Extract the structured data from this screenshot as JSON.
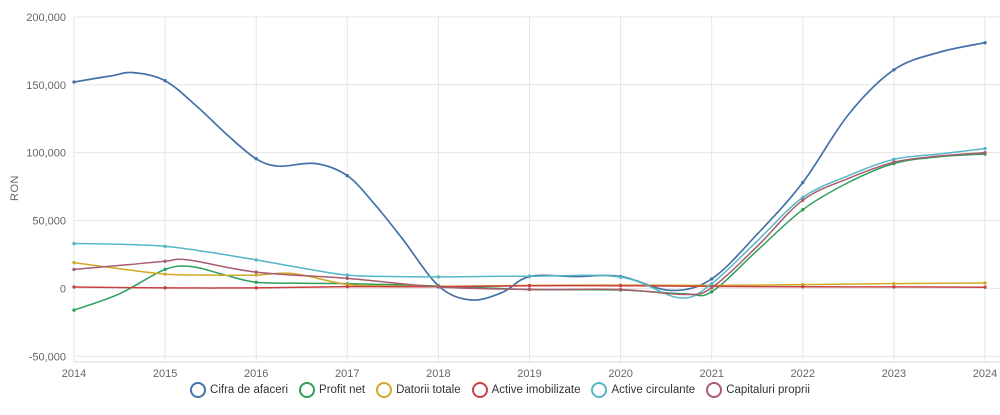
{
  "chart_data": {
    "type": "line",
    "title": "",
    "ylabel": "RON",
    "xlabel": "",
    "grid": true,
    "legend_position": "bottom",
    "xlim": [
      2014,
      2024
    ],
    "ylim": [
      -50000,
      200000
    ],
    "x_ticks": [
      {
        "value": 2014,
        "label": "2014"
      },
      {
        "value": 2015,
        "label": "2015"
      },
      {
        "value": 2016,
        "label": "2016"
      },
      {
        "value": 2017,
        "label": "2017"
      },
      {
        "value": 2018,
        "label": "2018"
      },
      {
        "value": 2019,
        "label": "2019"
      },
      {
        "value": 2020,
        "label": "2020"
      },
      {
        "value": 2021,
        "label": "2021"
      },
      {
        "value": 2022,
        "label": "2022"
      },
      {
        "value": 2023,
        "label": "2023"
      },
      {
        "value": 2024,
        "label": "2024"
      }
    ],
    "y_ticks": [
      {
        "value": 200000,
        "label": "200,000"
      },
      {
        "value": 150000,
        "label": "150,000"
      },
      {
        "value": 100000,
        "label": "100,000"
      },
      {
        "value": 50000,
        "label": "50,000"
      },
      {
        "value": 0,
        "label": "0"
      },
      {
        "value": -50000,
        "label": "-50,000"
      }
    ],
    "series": [
      {
        "name": "Cifra de afaceri",
        "color": "#4472a8",
        "points": [
          [
            2014,
            152000
          ],
          [
            2014.4,
            156500
          ],
          [
            2014.65,
            159000
          ],
          [
            2015,
            153000
          ],
          [
            2015.35,
            134000
          ],
          [
            2015.7,
            112000
          ],
          [
            2016,
            95500
          ],
          [
            2016.25,
            90000
          ],
          [
            2016.65,
            92000
          ],
          [
            2017,
            83000
          ],
          [
            2017.3,
            62000
          ],
          [
            2017.6,
            37000
          ],
          [
            2018,
            2000
          ],
          [
            2018.35,
            -8500
          ],
          [
            2018.7,
            -3000
          ],
          [
            2019,
            8800
          ],
          [
            2019.5,
            8800
          ],
          [
            2020,
            8800
          ],
          [
            2020.55,
            -1500
          ],
          [
            2021,
            7000
          ],
          [
            2021.5,
            40000
          ],
          [
            2022,
            78000
          ],
          [
            2022.5,
            128000
          ],
          [
            2023,
            161000
          ],
          [
            2023.5,
            174000
          ],
          [
            2024,
            181000
          ]
        ]
      },
      {
        "name": "Profit net",
        "color": "#2e9e5b",
        "points": [
          [
            2014,
            -16000
          ],
          [
            2014.5,
            -4000
          ],
          [
            2015,
            14000
          ],
          [
            2015.3,
            16000
          ],
          [
            2015.65,
            10000
          ],
          [
            2016,
            4500
          ],
          [
            2016.5,
            3800
          ],
          [
            2017,
            3500
          ],
          [
            2018,
            1800
          ],
          [
            2019,
            -800
          ],
          [
            2020,
            -1200
          ],
          [
            2020.7,
            -4000
          ],
          [
            2021,
            -2500
          ],
          [
            2021.5,
            28000
          ],
          [
            2022,
            58000
          ],
          [
            2022.5,
            78000
          ],
          [
            2023,
            92000
          ],
          [
            2023.5,
            97000
          ],
          [
            2024,
            99000
          ]
        ]
      },
      {
        "name": "Datorii totale",
        "color": "#d0a927",
        "points": [
          [
            2014,
            19000
          ],
          [
            2014.5,
            14500
          ],
          [
            2015,
            10500
          ],
          [
            2015.5,
            9800
          ],
          [
            2016,
            9800
          ],
          [
            2016.4,
            11000
          ],
          [
            2017,
            2900
          ],
          [
            2017.5,
            1800
          ],
          [
            2018,
            1500
          ],
          [
            2019,
            2200
          ],
          [
            2020,
            2400
          ],
          [
            2021,
            2200
          ],
          [
            2022,
            2800
          ],
          [
            2023,
            3500
          ],
          [
            2024,
            4000
          ]
        ]
      },
      {
        "name": "Active imobilizate",
        "color": "#c94040",
        "points": [
          [
            2014,
            1000
          ],
          [
            2015,
            400
          ],
          [
            2016,
            400
          ],
          [
            2017,
            1300
          ],
          [
            2018,
            1200
          ],
          [
            2019,
            2000
          ],
          [
            2020,
            2000
          ],
          [
            2021,
            1500
          ],
          [
            2022,
            1200
          ],
          [
            2023,
            1100
          ],
          [
            2024,
            900
          ]
        ]
      },
      {
        "name": "Active circulante",
        "color": "#55b7c5",
        "points": [
          [
            2014,
            33000
          ],
          [
            2014.5,
            32500
          ],
          [
            2015,
            31000
          ],
          [
            2015.5,
            26500
          ],
          [
            2016,
            21000
          ],
          [
            2016.5,
            15000
          ],
          [
            2017,
            9800
          ],
          [
            2017.5,
            8800
          ],
          [
            2018,
            8500
          ],
          [
            2019,
            9000
          ],
          [
            2020,
            8300
          ],
          [
            2020.65,
            -7000
          ],
          [
            2021,
            3500
          ],
          [
            2021.5,
            35000
          ],
          [
            2022,
            67000
          ],
          [
            2022.5,
            83000
          ],
          [
            2023,
            95000
          ],
          [
            2023.5,
            99000
          ],
          [
            2024,
            103000
          ]
        ]
      },
      {
        "name": "Capitaluri proprii",
        "color": "#a85c6e",
        "points": [
          [
            2014,
            14000
          ],
          [
            2014.6,
            17500
          ],
          [
            2015,
            20000
          ],
          [
            2015.25,
            21000
          ],
          [
            2016,
            12000
          ],
          [
            2017,
            7400
          ],
          [
            2018,
            1000
          ],
          [
            2019,
            -700
          ],
          [
            2020,
            -800
          ],
          [
            2020.7,
            -4500
          ],
          [
            2021,
            500
          ],
          [
            2021.5,
            31000
          ],
          [
            2022,
            65000
          ],
          [
            2022.5,
            81000
          ],
          [
            2023,
            93000
          ],
          [
            2023.5,
            97500
          ],
          [
            2024,
            100000
          ]
        ]
      }
    ],
    "colors": {
      "grid": "#e6e6e6",
      "axis_line": "#d8d8d8",
      "tick_text": "#666666",
      "legend_text": "#333333",
      "background": "#ffffff"
    }
  }
}
